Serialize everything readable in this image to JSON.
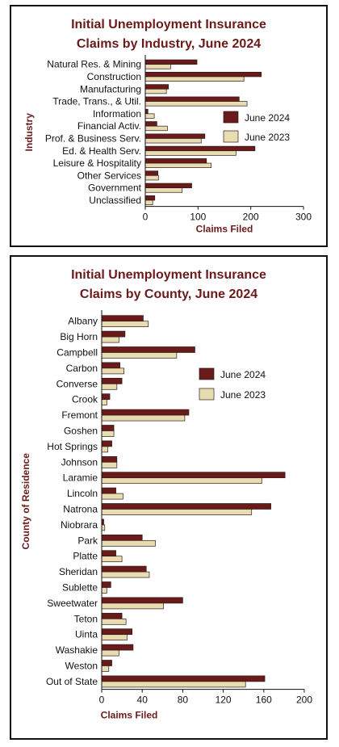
{
  "colors": {
    "series_2024": "#6b1a1a",
    "series_2023": "#e8dcb0",
    "title": "#6b1a1a",
    "border": "#111111"
  },
  "chart_data": [
    {
      "type": "bar",
      "orientation": "horizontal",
      "title_lines": [
        "Initial Unemployment Insurance",
        "Claims by Industry, June 2024"
      ],
      "xlabel": "Claims Filed",
      "ylabel": "Industry",
      "xlim": [
        0,
        300
      ],
      "xticks": [
        0,
        100,
        200,
        300
      ],
      "grid": false,
      "legend_position": "right",
      "categories": [
        "Natural Res. & Mining",
        "Construction",
        "Manufacturing",
        "Trade, Trans., & Util.",
        "Information",
        "Financial Activ.",
        "Prof. & Business Serv.",
        "Ed. & Health Serv.",
        "Leisure & Hospitality",
        "Other Services",
        "Government",
        "Unclassified"
      ],
      "series": [
        {
          "name": "June 2024",
          "values": [
            98,
            220,
            44,
            178,
            5,
            22,
            113,
            208,
            116,
            24,
            88,
            18
          ]
        },
        {
          "name": "June 2023",
          "values": [
            48,
            187,
            40,
            193,
            17,
            42,
            106,
            172,
            125,
            25,
            70,
            14
          ]
        }
      ]
    },
    {
      "type": "bar",
      "orientation": "horizontal",
      "title_lines": [
        "Initial Unemployment Insurance",
        "Claims by County, June 2024"
      ],
      "xlabel": "Claims Filed",
      "ylabel": "County of Residence",
      "xlim": [
        0,
        200
      ],
      "xticks": [
        0,
        40,
        80,
        120,
        160,
        200
      ],
      "grid": false,
      "legend_position": "top-right",
      "categories": [
        "Albany",
        "Big Horn",
        "Campbell",
        "Carbon",
        "Converse",
        "Crook",
        "Fremont",
        "Goshen",
        "Hot Springs",
        "Johnson",
        "Laramie",
        "Lincoln",
        "Natrona",
        "Niobrara",
        "Park",
        "Platte",
        "Sheridan",
        "Sublette",
        "Sweetwater",
        "Teton",
        "Uinta",
        "Washakie",
        "Weston",
        "Out of State"
      ],
      "series": [
        {
          "name": "June 2024",
          "values": [
            41,
            23,
            92,
            18,
            20,
            8,
            86,
            12,
            10,
            15,
            181,
            14,
            167,
            2,
            40,
            14,
            44,
            9,
            80,
            20,
            30,
            31,
            10,
            161
          ]
        },
        {
          "name": "June 2023",
          "values": [
            46,
            17,
            74,
            22,
            15,
            5,
            82,
            12,
            6,
            15,
            158,
            21,
            148,
            3,
            53,
            20,
            47,
            5,
            61,
            24,
            25,
            17,
            7,
            142
          ]
        }
      ]
    }
  ]
}
